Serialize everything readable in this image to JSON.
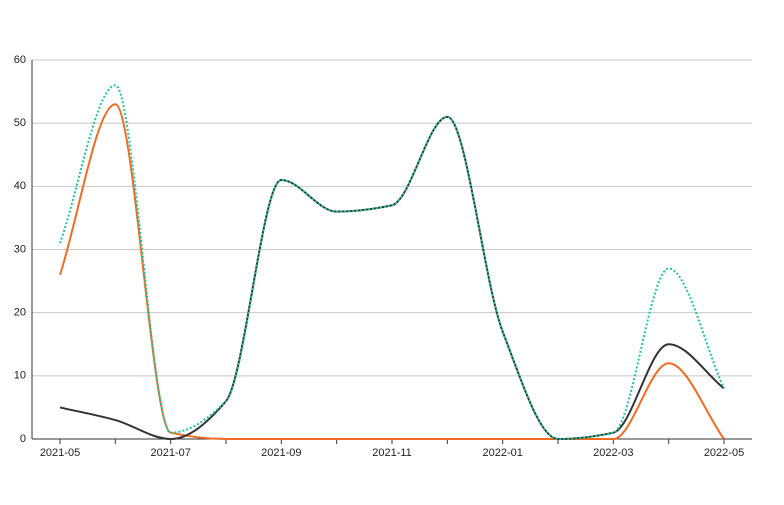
{
  "chart_data": {
    "type": "line",
    "categories": [
      "2021-05",
      null,
      "2021-07",
      null,
      "2021-09",
      null,
      "2021-11",
      null,
      "2022-01",
      null,
      "2022-03",
      null,
      "2022-05"
    ],
    "series": [
      {
        "color": "#f26b21",
        "style": "solid",
        "values": [
          26,
          53,
          1,
          0,
          0,
          0,
          0,
          0,
          0,
          0,
          0,
          12,
          0
        ]
      },
      {
        "color": "#333333",
        "style": "solid",
        "values": [
          5,
          3,
          0,
          6,
          41,
          36,
          37,
          51,
          17,
          0,
          1,
          15,
          8
        ]
      },
      {
        "color": "#1fc49a",
        "style": "dotted",
        "values": [
          31,
          56,
          1,
          6,
          41,
          36,
          37,
          51,
          17,
          0,
          1,
          27,
          8
        ]
      }
    ],
    "ylim": [
      0,
      60
    ],
    "yticks": [
      0,
      10,
      20,
      30,
      40,
      50,
      60
    ],
    "grid": true
  }
}
